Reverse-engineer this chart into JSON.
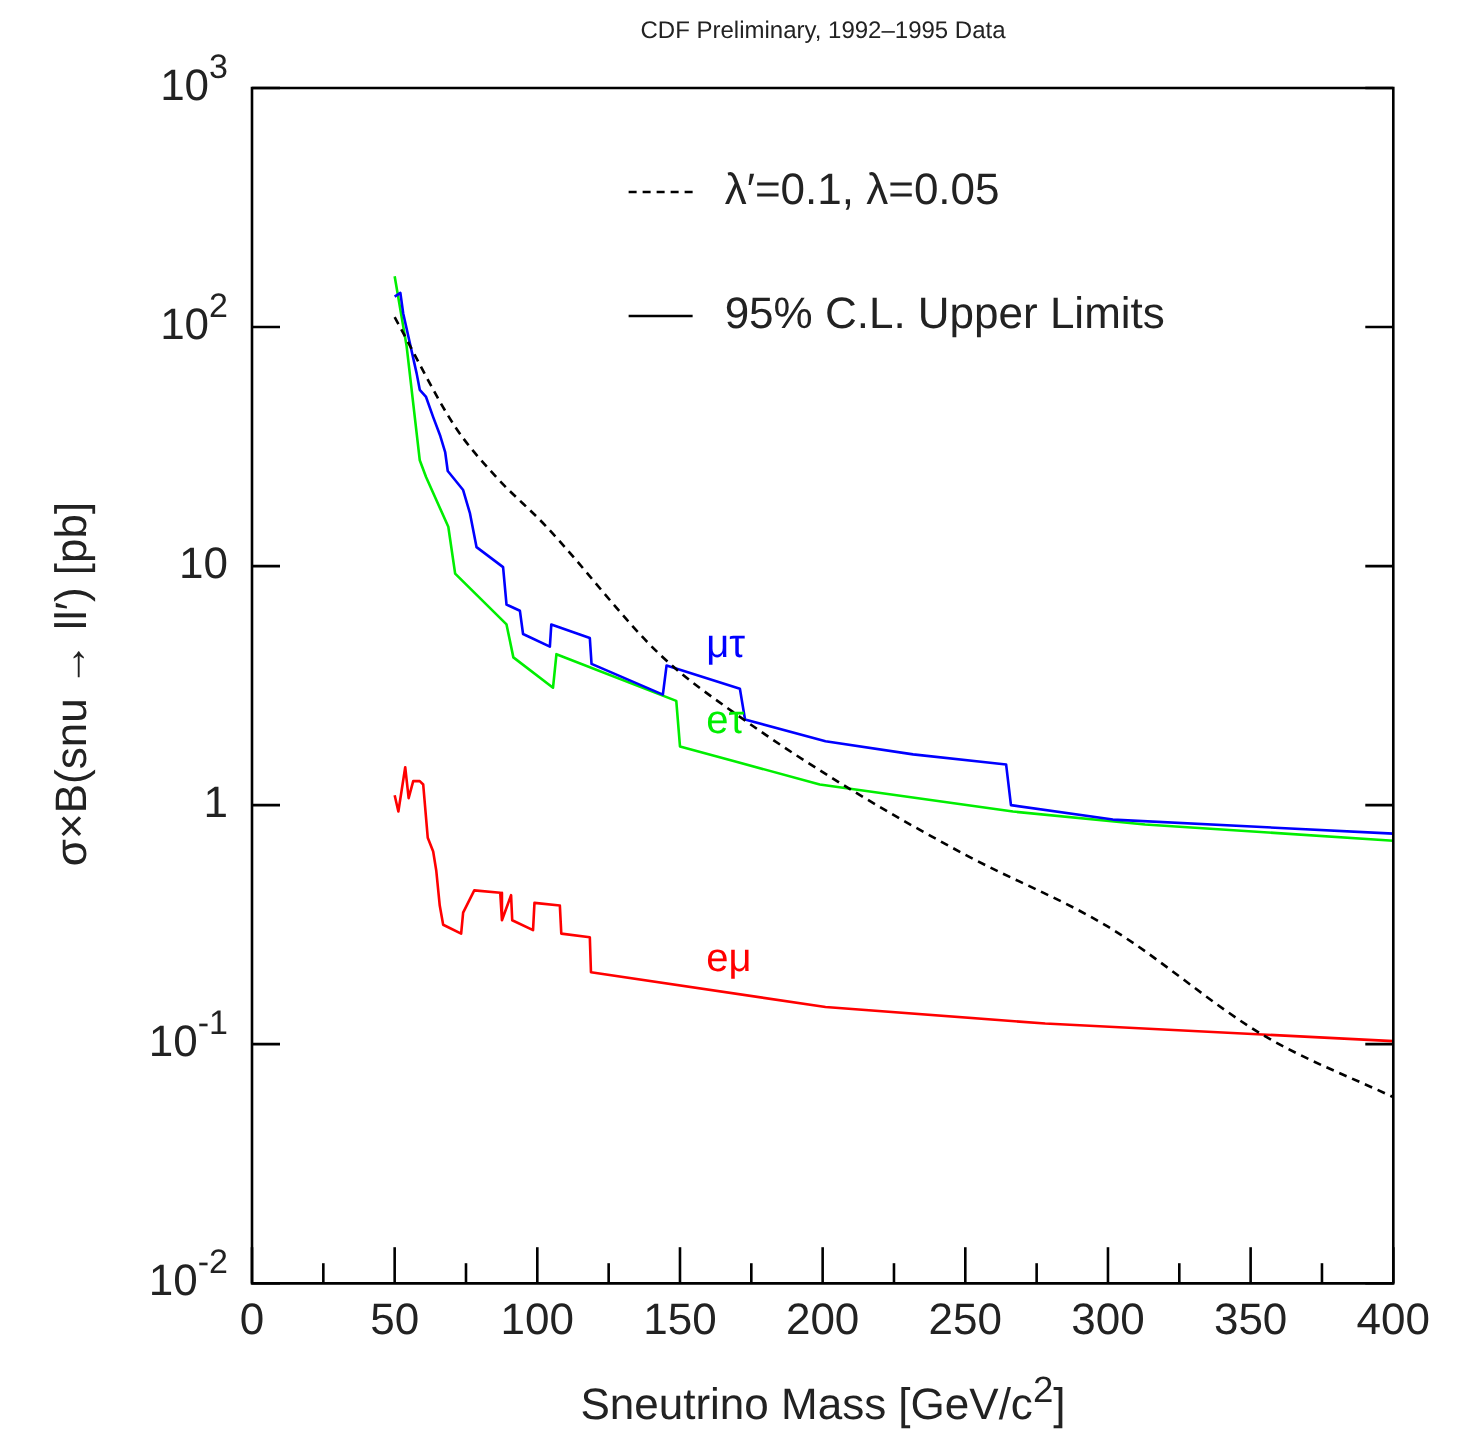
{
  "chart_data": {
    "type": "line",
    "title": "CDF Preliminary, 1992–1995 Data",
    "xlabel": "Sneutrino Mass [GeV/c$^{2}$]",
    "ylabel": "σ×B(snu → ll′) [pb]",
    "xlim": [
      0,
      400
    ],
    "xticks": [
      0,
      {
        "value": 25,
        "label": null
      },
      50,
      {
        "value": 75,
        "label": null
      },
      100,
      {
        "value": 125,
        "label": null
      },
      150,
      {
        "value": 175,
        "label": null
      },
      200,
      {
        "value": 225,
        "label": null
      },
      250,
      {
        "value": 275,
        "label": null
      },
      300,
      {
        "value": 325,
        "label": null
      },
      350,
      {
        "value": 375,
        "label": null
      },
      400
    ],
    "ylim": [
      0.01,
      1000
    ],
    "yticks": [
      {
        "value": 0.01,
        "label": "10$^{-2}$"
      },
      {
        "value": 0.1,
        "label": "10$^{-1}$"
      },
      1,
      10,
      {
        "value": 100,
        "label": "10$^{2}$"
      },
      {
        "value": 1000,
        "label": "10$^{3}$"
      }
    ],
    "log": "y",
    "grid": false,
    "legend": "top right",
    "marker": "none",
    "annotations": [
      "95% C.L. Upper Limits"
    ],
    "series": [
      {
        "name": "λ′=0.1, λ=0.05",
        "color": "#000000",
        "line_style": "dashed",
        "x": [
          50,
          71,
          85,
          103,
          143,
          171,
          211,
          250,
          300,
          355,
          400
        ],
        "values": [
          110,
          38.6,
          24,
          14.7,
          4.26,
          2.34,
          1.14,
          0.62,
          0.31,
          0.108,
          0.06
        ]
      },
      {
        "name": "μτ",
        "color": "#0000ff",
        "line_style": "solid",
        "x": [
          50,
          52,
          53,
          57.7,
          58.8,
          61,
          63.5,
          66,
          67.7,
          68.6,
          74,
          76.4,
          78.7,
          88,
          89.2,
          93.9,
          95,
          104.4,
          104.9,
          118.4,
          119,
          144,
          145.3,
          171,
          172.8,
          201,
          231.7,
          264.3,
          266,
          301.7,
          400
        ],
        "values": [
          134,
          139,
          114,
          64,
          54.6,
          51,
          42,
          35,
          30,
          25,
          20.8,
          16.6,
          12,
          9.9,
          6.9,
          6.5,
          5.2,
          4.6,
          5.7,
          5.0,
          3.9,
          2.9,
          3.84,
          3.07,
          2.28,
          1.85,
          1.63,
          1.48,
          1.0,
          0.87,
          0.76
        ]
      },
      {
        "name": "eτ",
        "color": "#00ee00",
        "line_style": "solid",
        "x": [
          50,
          54.2,
          58.8,
          61,
          68.8,
          71.2,
          89.2,
          91.6,
          105.5,
          106.7,
          148.7,
          150,
          199,
          266.7,
          313,
          400
        ],
        "values": [
          163,
          83,
          27.7,
          23.6,
          14.6,
          9.3,
          5.7,
          4.15,
          3.1,
          4.28,
          2.73,
          1.76,
          1.22,
          0.94,
          0.83,
          0.71
        ]
      },
      {
        "name": "eμ",
        "color": "#ff0000",
        "line_style": "solid",
        "x": [
          50,
          51.3,
          53.7,
          54.9,
          56.5,
          58.8,
          60,
          61.6,
          63.5,
          64.6,
          65.8,
          67,
          73.3,
          74,
          77.9,
          87,
          87.6,
          90.8,
          91.2,
          98.5,
          99,
          107.9,
          108.4,
          118.4,
          118.8,
          201,
          278,
          400
        ],
        "values": [
          1.1,
          0.94,
          1.44,
          1.07,
          1.26,
          1.26,
          1.22,
          0.73,
          0.64,
          0.53,
          0.38,
          0.316,
          0.29,
          0.355,
          0.44,
          0.43,
          0.33,
          0.42,
          0.33,
          0.3,
          0.39,
          0.38,
          0.29,
          0.28,
          0.2,
          0.143,
          0.122,
          0.103
        ]
      }
    ]
  }
}
